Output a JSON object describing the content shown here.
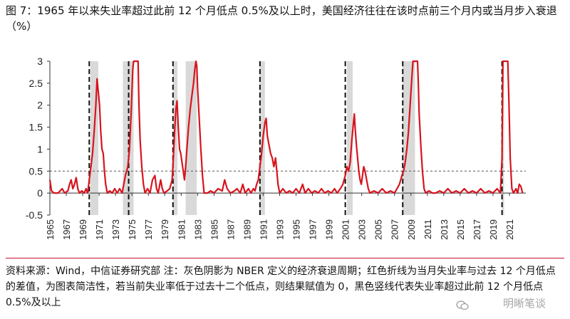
{
  "title": "图 7：1965 年以来失业率超过此前 12 个月低点 0.5%及以上时，美国经济往往在该时点前三个月内或当月步入衰退（%）",
  "source_note": "资料来源：Wind，中信证券研究部  注：灰色阴影为 NBER 定义的经济衰退周期；红色折线为当月失业率与过去 12 个月低点的差值，为图表简洁性，若当前失业率低于过去十二个低点，则结果赋值为 0，黑色竖线代表失业率超过此前 12 个月低点 0.5%及以上",
  "watermark": "明晰笔谈",
  "colors": {
    "line": "#d7141e",
    "shade": "#d9d9d9",
    "vline": "#111111",
    "threshold": "#555555",
    "accent": "#c8102e"
  },
  "chart_data": {
    "type": "line",
    "xlim": [
      1965,
      2023
    ],
    "ylim": [
      -0.5,
      3
    ],
    "yticks": [
      -0.5,
      0,
      0.5,
      1,
      1.5,
      2,
      2.5,
      3
    ],
    "ytick_labels": [
      "-0.5",
      "0",
      "0.5",
      "1",
      "1.5",
      "2",
      "2.5",
      "3"
    ],
    "xticks": [
      1965,
      1967,
      1969,
      1971,
      1973,
      1975,
      1977,
      1979,
      1981,
      1983,
      1985,
      1987,
      1989,
      1991,
      1993,
      1995,
      1997,
      1999,
      2001,
      2003,
      2005,
      2007,
      2009,
      2011,
      2013,
      2015,
      2017,
      2019,
      2021
    ],
    "xtick_labels": [
      "1965",
      "1967",
      "1969",
      "1971",
      "1973",
      "1975",
      "1977",
      "1979",
      "1981",
      "1983",
      "1985",
      "1987",
      "1989",
      "1991",
      "1993",
      "1995",
      "1997",
      "1999",
      "2001",
      "2003",
      "2005",
      "2007",
      "2009",
      "2011",
      "2013",
      "2015",
      "2017",
      "2019",
      "2021"
    ],
    "threshold": 0.5,
    "recessions": [
      [
        1969.95,
        1970.9
      ],
      [
        1973.9,
        1975.2
      ],
      [
        1980.0,
        1980.55
      ],
      [
        1981.55,
        1982.9
      ],
      [
        1990.55,
        1991.2
      ],
      [
        2001.2,
        2001.9
      ],
      [
        2007.95,
        2009.5
      ],
      [
        2020.1,
        2020.35
      ]
    ],
    "trigger_lines": [
      1969.8,
      1974.6,
      1980.0,
      1990.6,
      2001.0,
      2008.0,
      2020.1
    ],
    "series": [
      {
        "values": [
          [
            1965.0,
            0.3
          ],
          [
            1965.2,
            0.05
          ],
          [
            1965.5,
            0.0
          ],
          [
            1966.0,
            0.0
          ],
          [
            1966.5,
            0.1
          ],
          [
            1966.8,
            0.0
          ],
          [
            1967.2,
            0.05
          ],
          [
            1967.4,
            0.2
          ],
          [
            1967.6,
            0.3
          ],
          [
            1967.8,
            0.1
          ],
          [
            1968.0,
            0.2
          ],
          [
            1968.2,
            0.35
          ],
          [
            1968.4,
            0.1
          ],
          [
            1968.6,
            0.0
          ],
          [
            1968.9,
            0.05
          ],
          [
            1969.2,
            0.0
          ],
          [
            1969.4,
            0.1
          ],
          [
            1969.6,
            0.0
          ],
          [
            1969.8,
            0.3
          ],
          [
            1970.0,
            0.6
          ],
          [
            1970.2,
            0.9
          ],
          [
            1970.4,
            1.4
          ],
          [
            1970.6,
            2.0
          ],
          [
            1970.75,
            2.6
          ],
          [
            1970.9,
            2.3
          ],
          [
            1971.05,
            2.0
          ],
          [
            1971.2,
            1.4
          ],
          [
            1971.35,
            1.0
          ],
          [
            1971.5,
            0.9
          ],
          [
            1971.65,
            0.5
          ],
          [
            1971.8,
            0.2
          ],
          [
            1972.0,
            0.0
          ],
          [
            1972.3,
            0.05
          ],
          [
            1972.6,
            0.0
          ],
          [
            1972.9,
            0.1
          ],
          [
            1973.2,
            0.0
          ],
          [
            1973.5,
            0.1
          ],
          [
            1973.8,
            0.0
          ],
          [
            1974.0,
            0.2
          ],
          [
            1974.2,
            0.4
          ],
          [
            1974.5,
            0.6
          ],
          [
            1974.7,
            1.0
          ],
          [
            1974.9,
            1.8
          ],
          [
            1975.1,
            2.8
          ],
          [
            1975.2,
            3.0
          ],
          [
            1975.75,
            3.0
          ],
          [
            1975.85,
            2.0
          ],
          [
            1976.0,
            1.2
          ],
          [
            1976.2,
            0.6
          ],
          [
            1976.4,
            0.2
          ],
          [
            1976.6,
            0.0
          ],
          [
            1976.9,
            0.1
          ],
          [
            1977.2,
            0.0
          ],
          [
            1977.5,
            0.3
          ],
          [
            1977.8,
            0.4
          ],
          [
            1978.0,
            0.1
          ],
          [
            1978.2,
            0.0
          ],
          [
            1978.5,
            0.3
          ],
          [
            1978.7,
            0.1
          ],
          [
            1978.9,
            0.0
          ],
          [
            1979.3,
            0.05
          ],
          [
            1979.6,
            0.1
          ],
          [
            1979.9,
            0.3
          ],
          [
            1980.05,
            0.8
          ],
          [
            1980.2,
            1.4
          ],
          [
            1980.35,
            1.9
          ],
          [
            1980.5,
            2.1
          ],
          [
            1980.65,
            1.5
          ],
          [
            1980.8,
            1.0
          ],
          [
            1980.95,
            0.9
          ],
          [
            1981.1,
            0.7
          ],
          [
            1981.25,
            0.5
          ],
          [
            1981.4,
            0.3
          ],
          [
            1981.55,
            0.6
          ],
          [
            1981.7,
            1.0
          ],
          [
            1981.9,
            1.5
          ],
          [
            1982.1,
            1.9
          ],
          [
            1982.3,
            2.2
          ],
          [
            1982.5,
            2.5
          ],
          [
            1982.65,
            2.8
          ],
          [
            1982.8,
            3.0
          ],
          [
            1982.9,
            2.9
          ],
          [
            1983.0,
            2.4
          ],
          [
            1983.2,
            1.7
          ],
          [
            1983.4,
            1.0
          ],
          [
            1983.6,
            0.4
          ],
          [
            1983.8,
            0.0
          ],
          [
            1984.2,
            0.0
          ],
          [
            1984.6,
            0.05
          ],
          [
            1985.0,
            0.0
          ],
          [
            1985.5,
            0.1
          ],
          [
            1986.0,
            0.05
          ],
          [
            1986.3,
            0.3
          ],
          [
            1986.6,
            0.1
          ],
          [
            1987.0,
            0.0
          ],
          [
            1987.5,
            0.05
          ],
          [
            1987.8,
            0.1
          ],
          [
            1988.2,
            0.0
          ],
          [
            1988.5,
            0.2
          ],
          [
            1988.8,
            0.0
          ],
          [
            1989.2,
            0.1
          ],
          [
            1989.5,
            0.0
          ],
          [
            1989.8,
            0.1
          ],
          [
            1990.0,
            0.05
          ],
          [
            1990.2,
            0.2
          ],
          [
            1990.4,
            0.3
          ],
          [
            1990.6,
            0.6
          ],
          [
            1990.8,
            0.9
          ],
          [
            1991.0,
            1.3
          ],
          [
            1991.2,
            1.6
          ],
          [
            1991.35,
            1.7
          ],
          [
            1991.5,
            1.3
          ],
          [
            1991.7,
            1.1
          ],
          [
            1991.9,
            0.9
          ],
          [
            1992.1,
            0.8
          ],
          [
            1992.3,
            0.6
          ],
          [
            1992.5,
            0.8
          ],
          [
            1992.65,
            0.5
          ],
          [
            1992.8,
            0.2
          ],
          [
            1993.0,
            0.0
          ],
          [
            1993.4,
            0.1
          ],
          [
            1993.8,
            0.0
          ],
          [
            1994.2,
            0.05
          ],
          [
            1994.6,
            0.0
          ],
          [
            1995.0,
            0.1
          ],
          [
            1995.4,
            0.0
          ],
          [
            1995.8,
            0.2
          ],
          [
            1996.1,
            0.0
          ],
          [
            1996.5,
            0.1
          ],
          [
            1996.9,
            0.0
          ],
          [
            1997.3,
            0.05
          ],
          [
            1997.7,
            0.0
          ],
          [
            1998.1,
            0.1
          ],
          [
            1998.5,
            0.0
          ],
          [
            1998.9,
            0.05
          ],
          [
            1999.3,
            0.0
          ],
          [
            1999.7,
            0.1
          ],
          [
            2000.0,
            0.0
          ],
          [
            2000.4,
            0.1
          ],
          [
            2000.7,
            0.2
          ],
          [
            2001.0,
            0.4
          ],
          [
            2001.2,
            0.6
          ],
          [
            2001.4,
            0.5
          ],
          [
            2001.6,
            0.7
          ],
          [
            2001.8,
            1.2
          ],
          [
            2002.0,
            1.6
          ],
          [
            2002.1,
            1.8
          ],
          [
            2002.2,
            1.5
          ],
          [
            2002.35,
            1.1
          ],
          [
            2002.5,
            0.8
          ],
          [
            2002.65,
            0.5
          ],
          [
            2002.8,
            0.3
          ],
          [
            2002.95,
            0.2
          ],
          [
            2003.1,
            0.4
          ],
          [
            2003.25,
            0.6
          ],
          [
            2003.4,
            0.5
          ],
          [
            2003.6,
            0.3
          ],
          [
            2003.8,
            0.1
          ],
          [
            2004.0,
            0.0
          ],
          [
            2004.5,
            0.05
          ],
          [
            2005.0,
            0.0
          ],
          [
            2005.5,
            0.1
          ],
          [
            2006.0,
            0.0
          ],
          [
            2006.5,
            0.05
          ],
          [
            2007.0,
            0.0
          ],
          [
            2007.3,
            0.1
          ],
          [
            2007.6,
            0.2
          ],
          [
            2007.9,
            0.4
          ],
          [
            2008.1,
            0.5
          ],
          [
            2008.3,
            0.7
          ],
          [
            2008.5,
            1.0
          ],
          [
            2008.7,
            1.4
          ],
          [
            2008.9,
            2.0
          ],
          [
            2009.1,
            2.6
          ],
          [
            2009.25,
            3.0
          ],
          [
            2009.8,
            3.0
          ],
          [
            2009.9,
            2.5
          ],
          [
            2010.0,
            1.8
          ],
          [
            2010.2,
            1.1
          ],
          [
            2010.4,
            0.5
          ],
          [
            2010.6,
            0.1
          ],
          [
            2010.8,
            0.0
          ],
          [
            2011.2,
            0.05
          ],
          [
            2011.6,
            0.0
          ],
          [
            2012.0,
            0.0
          ],
          [
            2012.5,
            0.05
          ],
          [
            2013.0,
            0.0
          ],
          [
            2013.5,
            0.1
          ],
          [
            2014.0,
            0.0
          ],
          [
            2014.5,
            0.05
          ],
          [
            2015.0,
            0.0
          ],
          [
            2015.5,
            0.1
          ],
          [
            2016.0,
            0.0
          ],
          [
            2016.5,
            0.05
          ],
          [
            2017.0,
            0.0
          ],
          [
            2017.5,
            0.1
          ],
          [
            2018.0,
            0.0
          ],
          [
            2018.5,
            0.05
          ],
          [
            2019.0,
            0.0
          ],
          [
            2019.5,
            0.1
          ],
          [
            2019.9,
            0.0
          ],
          [
            2020.1,
            0.8
          ],
          [
            2020.2,
            3.0
          ],
          [
            2020.8,
            3.0
          ],
          [
            2020.95,
            2.0
          ],
          [
            2021.1,
            0.8
          ],
          [
            2021.3,
            0.1
          ],
          [
            2021.5,
            0.0
          ],
          [
            2021.8,
            0.1
          ],
          [
            2022.0,
            0.0
          ],
          [
            2022.2,
            0.2
          ],
          [
            2022.4,
            0.15
          ],
          [
            2022.6,
            0.0
          ]
        ]
      }
    ]
  }
}
